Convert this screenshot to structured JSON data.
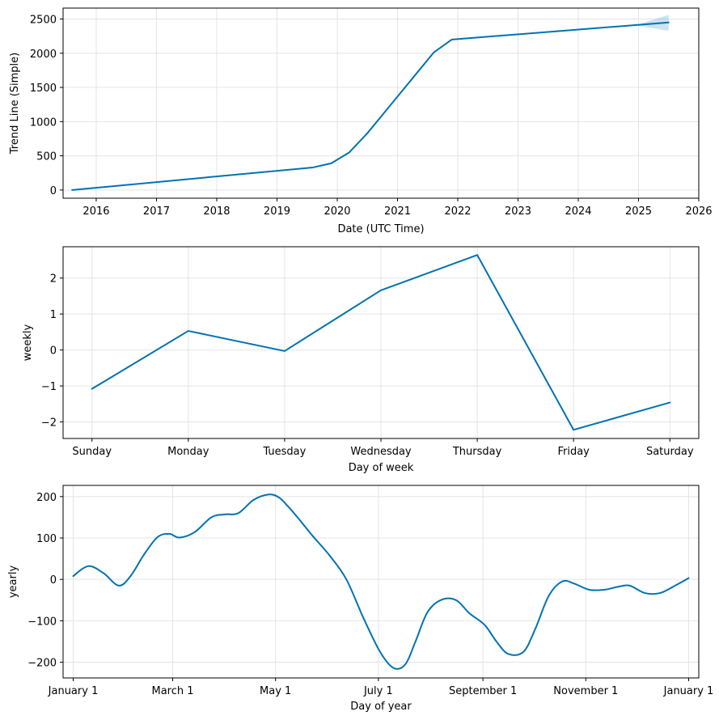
{
  "chart_data": [
    {
      "type": "line",
      "xlabel": "Date (UTC Time)",
      "ylabel": "Trend Line (Simple)",
      "x_ticks": [
        "2016",
        "2017",
        "2018",
        "2019",
        "2020",
        "2021",
        "2022",
        "2023",
        "2024",
        "2025",
        "2026"
      ],
      "y_ticks": [
        "0",
        "500",
        "1000",
        "1500",
        "2000",
        "2500"
      ],
      "xlim": [
        2015.45,
        2026.0
      ],
      "ylim": [
        -120,
        2660
      ],
      "grid": true,
      "series": [
        {
          "color": "#0072b2",
          "x": [
            2015.6,
            2019.6,
            2019.9,
            2020.2,
            2020.5,
            2021.6,
            2021.9,
            2025.5
          ],
          "y": [
            0,
            330,
            390,
            550,
            830,
            2010,
            2200,
            2450
          ]
        }
      ],
      "uncertainty_band": {
        "x": [
          2025.0,
          2025.2,
          2025.5
        ],
        "lower": [
          2400,
          2370,
          2330
        ],
        "upper": [
          2420,
          2480,
          2560
        ]
      }
    },
    {
      "type": "line",
      "xlabel": "Day of week",
      "ylabel": "weekly",
      "categories": [
        "Sunday",
        "Monday",
        "Tuesday",
        "Wednesday",
        "Thursday",
        "Friday",
        "Saturday"
      ],
      "y_ticks": [
        "−2",
        "−1",
        "0",
        "1",
        "2"
      ],
      "ylim": [
        -2.46,
        2.87
      ],
      "grid": true,
      "series": [
        {
          "color": "#0072b2",
          "values": [
            -1.08,
            0.53,
            -0.03,
            1.66,
            2.64,
            -2.22,
            -1.46
          ]
        }
      ]
    },
    {
      "type": "line",
      "xlabel": "Day of year",
      "ylabel": "yearly",
      "x_ticks": [
        "January 1",
        "March 1",
        "May 1",
        "July 1",
        "September 1",
        "November 1",
        "January 1"
      ],
      "x_tick_days": [
        0,
        59,
        120,
        181,
        243,
        304,
        365
      ],
      "y_ticks": [
        "−200",
        "−100",
        "0",
        "100",
        "200"
      ],
      "xlim": [
        -6,
        371
      ],
      "ylim": [
        -238,
        227
      ],
      "grid": true,
      "series": [
        {
          "color": "#0072b2",
          "x": [
            0,
            9,
            18,
            27,
            34,
            42,
            50,
            57,
            63,
            72,
            82,
            90,
            98,
            107,
            116,
            122,
            127,
            133,
            142,
            152,
            162,
            172,
            182,
            190,
            197,
            203,
            210,
            218,
            227,
            235,
            244,
            251,
            258,
            267,
            274,
            282,
            290,
            297,
            306,
            315,
            323,
            330,
            339,
            348,
            357,
            365
          ],
          "y": [
            8,
            32,
            15,
            -15,
            8,
            60,
            102,
            110,
            101,
            114,
            150,
            157,
            160,
            192,
            205,
            198,
            178,
            150,
            105,
            58,
            0,
            -92,
            -175,
            -214,
            -205,
            -150,
            -80,
            -50,
            -50,
            -82,
            -110,
            -150,
            -180,
            -175,
            -120,
            -40,
            -5,
            -10,
            -25,
            -25,
            -18,
            -15,
            -33,
            -33,
            -15,
            3
          ]
        }
      ]
    }
  ]
}
